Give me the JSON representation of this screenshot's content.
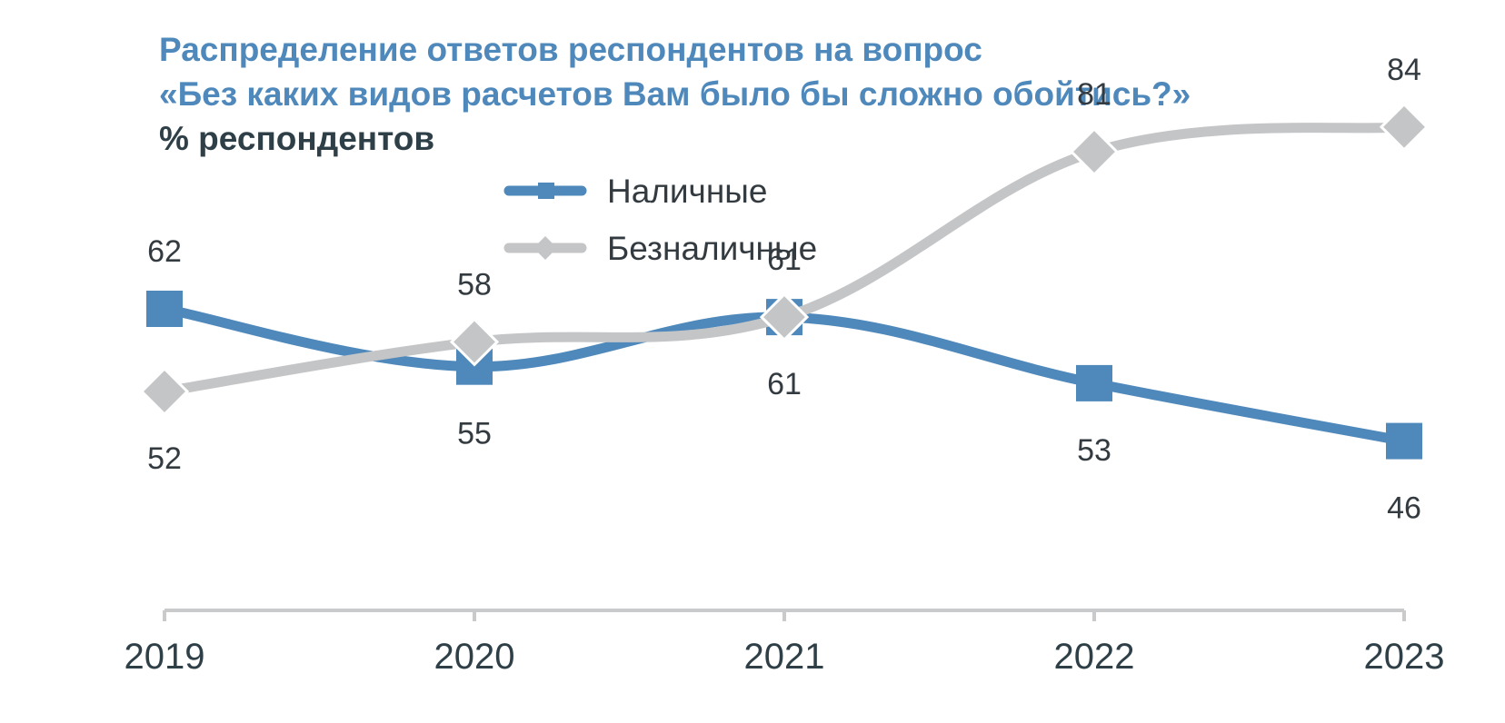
{
  "title": {
    "line1": "Распределение ответов респондентов на вопрос",
    "line2": "«Без каких видов расчетов Вам было бы сложно обойтись?»"
  },
  "subtitle": "% респондентов",
  "colors": {
    "title": "#4f88bb",
    "subtitle": "#2e3f47",
    "cash": "#4f88bb",
    "cashless": "#c4c5c7",
    "axis": "#c9cacc"
  },
  "chart_data": {
    "type": "line",
    "categories": [
      "2019",
      "2020",
      "2021",
      "2022",
      "2023"
    ],
    "ylim": [
      40,
      90
    ],
    "grid": false,
    "legend_position": "top-center",
    "series": [
      {
        "name": "Наличные",
        "values": [
          62,
          55,
          61,
          53,
          46
        ],
        "marker": "square",
        "color": "#4f88bb",
        "label_position": [
          "above",
          "below",
          "below",
          "below",
          "below"
        ]
      },
      {
        "name": "Безналичные",
        "values": [
          52,
          58,
          61,
          81,
          84
        ],
        "marker": "diamond",
        "color": "#c4c5c7",
        "label_position": [
          "below",
          "above",
          "above",
          "above",
          "above"
        ]
      }
    ]
  }
}
